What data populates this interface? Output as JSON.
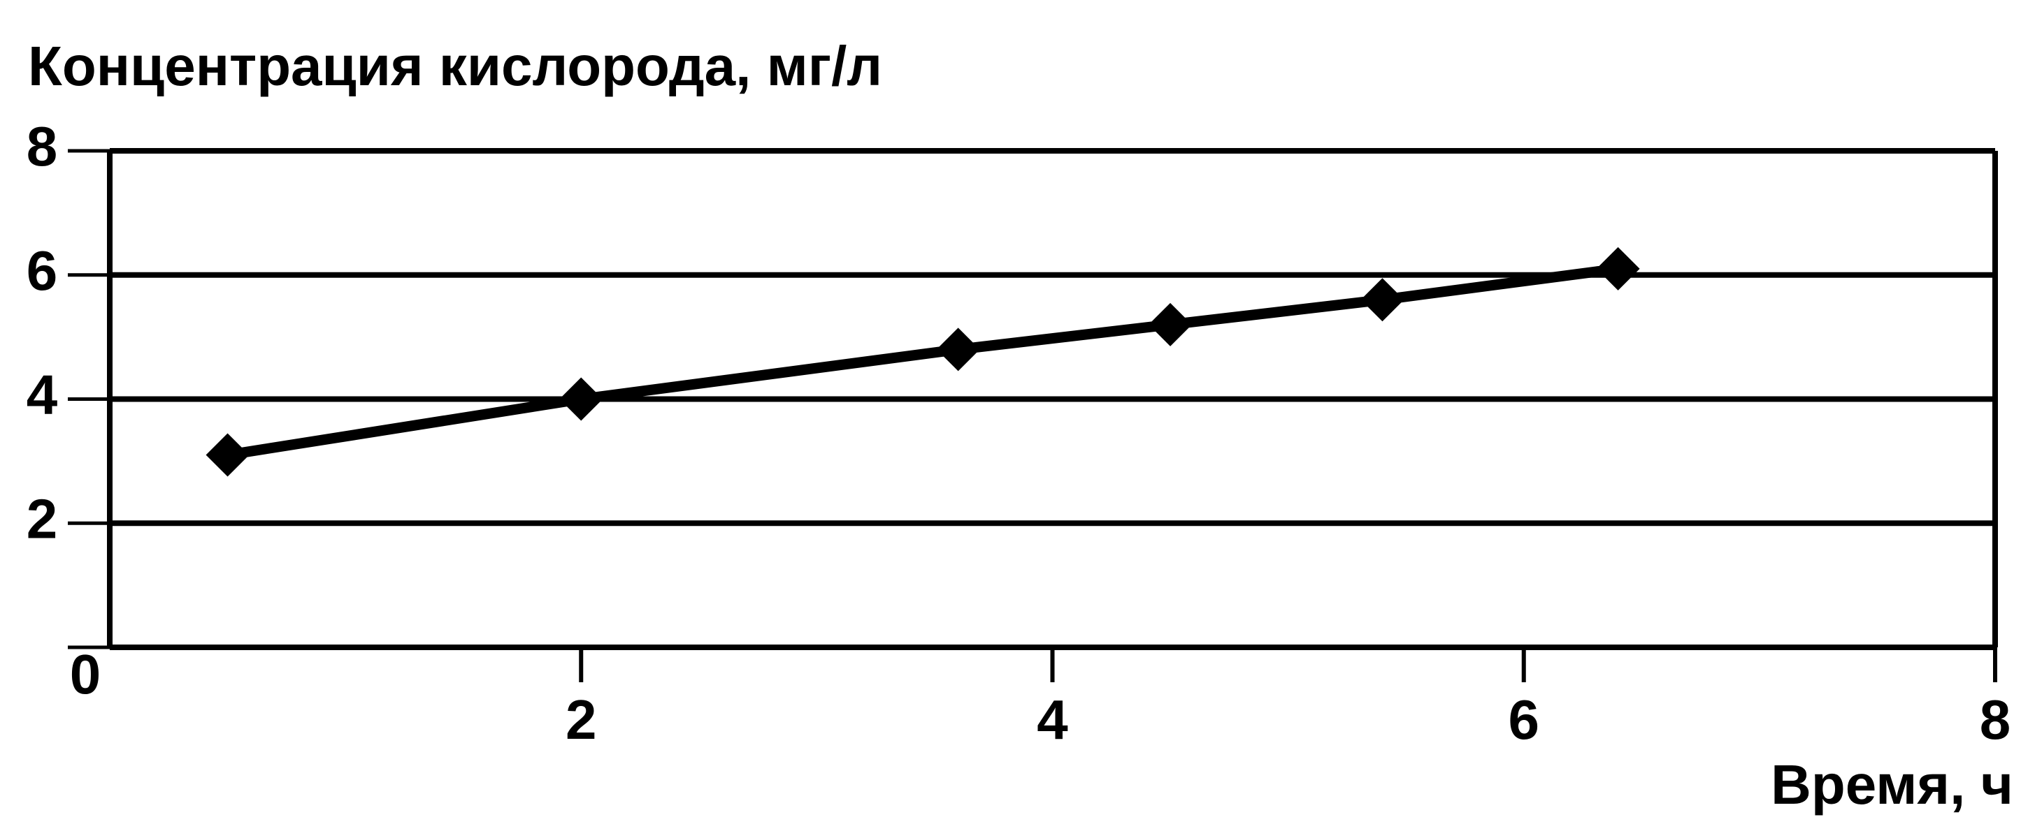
{
  "chart_data": {
    "type": "line",
    "title": "Концентрация кислорода, мг/л",
    "x_label": "Время, ч",
    "series": [
      {
        "name": "Концентрация кислорода",
        "color": "#000000",
        "x": [
          0.5,
          2,
          3.6,
          4.5,
          5.4,
          6.4
        ],
        "values": [
          3.1,
          4.0,
          4.8,
          5.2,
          5.6,
          6.1
        ]
      }
    ],
    "xlim": [
      0,
      8
    ],
    "xticks": [
      2,
      4,
      6,
      8
    ],
    "ylim": [
      0,
      8
    ],
    "yticks": [
      0,
      2,
      4,
      6,
      8
    ],
    "grid": true
  }
}
